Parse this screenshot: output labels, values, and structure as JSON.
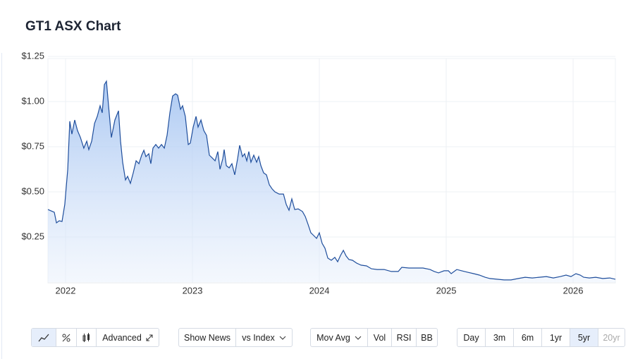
{
  "title": "GT1 ASX Chart",
  "chart_data": {
    "type": "area",
    "color": "#1f4e9c",
    "grid": true,
    "xlim": [
      2021.861,
      2026.333
    ],
    "xticks": [
      2022,
      2023,
      2024,
      2025,
      2026
    ],
    "ylim": [
      0,
      1.25
    ],
    "yticks": [
      {
        "value": 0.25,
        "label": "$0.25"
      },
      {
        "value": 0.5,
        "label": "$0.50"
      },
      {
        "value": 0.75,
        "label": "$0.75"
      },
      {
        "value": 1,
        "label": "$1.00"
      },
      {
        "value": 1.25,
        "label": "$1.25"
      }
    ],
    "x": [
      2021.861,
      2021.911,
      2021.928,
      2021.95,
      2021.972,
      2021.994,
      2022.017,
      2022.033,
      2022.05,
      2022.072,
      2022.094,
      2022.117,
      2022.144,
      2022.167,
      2022.183,
      2022.206,
      2022.228,
      2022.25,
      2022.272,
      2022.289,
      2022.306,
      2022.322,
      2022.339,
      2022.361,
      2022.389,
      2022.417,
      2022.433,
      2022.45,
      2022.472,
      2022.489,
      2022.511,
      2022.533,
      2022.556,
      2022.578,
      2022.6,
      2022.617,
      2022.633,
      2022.656,
      2022.672,
      2022.689,
      2022.711,
      2022.733,
      2022.756,
      2022.778,
      2022.8,
      2022.822,
      2022.844,
      2022.867,
      2022.883,
      2022.906,
      2022.922,
      2022.944,
      2022.967,
      2022.983,
      2023.006,
      2023.028,
      2023.044,
      2023.067,
      2023.089,
      2023.111,
      2023.133,
      2023.156,
      2023.178,
      2023.2,
      2023.217,
      2023.239,
      2023.25,
      2023.267,
      2023.289,
      2023.311,
      2023.333,
      2023.356,
      2023.372,
      2023.394,
      2023.411,
      2023.428,
      2023.444,
      2023.461,
      2023.483,
      2023.506,
      2023.522,
      2023.539,
      2023.561,
      2023.583,
      2023.606,
      2023.628,
      2023.65,
      2023.683,
      2023.717,
      2023.739,
      2023.761,
      2023.783,
      2023.806,
      2023.833,
      2023.867,
      2023.889,
      2023.911,
      2023.933,
      2023.956,
      2023.978,
      2024.0,
      2024.022,
      2024.044,
      2024.067,
      2024.094,
      2024.122,
      2024.144,
      2024.167,
      2024.189,
      2024.211,
      2024.233,
      2024.261,
      2024.294,
      2024.328,
      2024.372,
      2024.411,
      2024.456,
      2024.511,
      2024.567,
      2024.622,
      2024.65,
      2024.706,
      2024.761,
      2024.817,
      2024.872,
      2024.906,
      2024.939,
      2024.983,
      2025.017,
      2025.039,
      2025.083,
      2025.122,
      2025.167,
      2025.217,
      2025.261,
      2025.306,
      2025.344,
      2025.4,
      2025.456,
      2025.511,
      2025.567,
      2025.622,
      2025.678,
      2025.733,
      2025.789,
      2025.844,
      2025.9,
      2025.944,
      2025.983,
      2026.022,
      2026.056,
      2026.083,
      2026.128,
      2026.178,
      2026.233,
      2026.289,
      2026.333
    ],
    "values": [
      0.402,
      0.387,
      0.328,
      0.34,
      0.336,
      0.43,
      0.625,
      0.891,
      0.82,
      0.898,
      0.84,
      0.801,
      0.742,
      0.781,
      0.734,
      0.781,
      0.879,
      0.918,
      0.977,
      0.938,
      1.094,
      1.113,
      0.977,
      0.801,
      0.898,
      0.949,
      0.781,
      0.664,
      0.566,
      0.586,
      0.547,
      0.605,
      0.672,
      0.656,
      0.703,
      0.73,
      0.695,
      0.711,
      0.656,
      0.742,
      0.762,
      0.742,
      0.762,
      0.742,
      0.813,
      0.938,
      1.031,
      1.043,
      1.035,
      0.957,
      0.977,
      0.918,
      0.762,
      0.77,
      0.859,
      0.918,
      0.859,
      0.898,
      0.84,
      0.813,
      0.703,
      0.688,
      0.672,
      0.723,
      0.625,
      0.684,
      0.734,
      0.645,
      0.633,
      0.656,
      0.594,
      0.684,
      0.758,
      0.695,
      0.711,
      0.672,
      0.723,
      0.664,
      0.703,
      0.664,
      0.695,
      0.645,
      0.605,
      0.594,
      0.539,
      0.516,
      0.5,
      0.488,
      0.488,
      0.43,
      0.398,
      0.461,
      0.402,
      0.406,
      0.391,
      0.363,
      0.32,
      0.273,
      0.258,
      0.242,
      0.273,
      0.215,
      0.188,
      0.133,
      0.121,
      0.137,
      0.113,
      0.148,
      0.176,
      0.145,
      0.125,
      0.121,
      0.105,
      0.094,
      0.09,
      0.074,
      0.07,
      0.07,
      0.059,
      0.059,
      0.082,
      0.078,
      0.078,
      0.078,
      0.07,
      0.059,
      0.051,
      0.063,
      0.063,
      0.047,
      0.07,
      0.063,
      0.055,
      0.047,
      0.039,
      0.027,
      0.02,
      0.016,
      0.012,
      0.012,
      0.02,
      0.027,
      0.023,
      0.027,
      0.031,
      0.023,
      0.031,
      0.039,
      0.031,
      0.047,
      0.039,
      0.027,
      0.023,
      0.027,
      0.02,
      0.023,
      0.016
    ]
  },
  "controls": [
    "Advanced",
    "Show News",
    "vs Index",
    "Mov Avg",
    "Vol",
    "RSI",
    "BB",
    "Day",
    "3m",
    "6m",
    "1yr",
    "5yr",
    "20yr"
  ]
}
